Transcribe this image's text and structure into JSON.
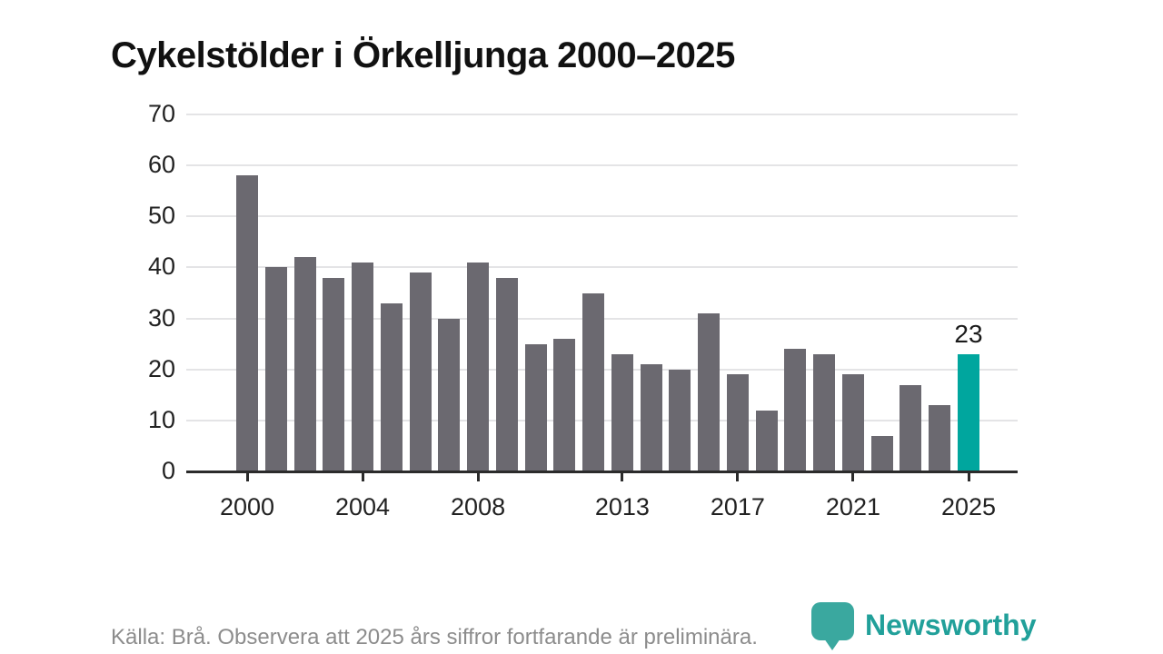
{
  "title": "Cykelstölder i Örkelljunga 2000–2025",
  "footer": {
    "source_text": "Källa: Brå. Observera att 2025 års siffror fortfarande är preliminära.",
    "logo_text": "Newsworthy"
  },
  "colors": {
    "bar": "#6b6970",
    "highlight": "#00a69e",
    "grid": "#e4e4e6",
    "axis": "#2b2b2b",
    "logo_teal": "#3aa89f",
    "logo_text_teal": "#21a09a",
    "source_text_gray": "#8c8c8c"
  },
  "chart_data": {
    "type": "bar",
    "title": "Cykelstölder i Örkelljunga 2000–2025",
    "categories": [
      "2000",
      "2001",
      "2002",
      "2003",
      "2004",
      "2005",
      "2006",
      "2007",
      "2008",
      "2009",
      "2010",
      "2011",
      "2012",
      "2013",
      "2014",
      "2015",
      "2016",
      "2017",
      "2018",
      "2019",
      "2020",
      "2021",
      "2022",
      "2023",
      "2024",
      "2025"
    ],
    "values": [
      58,
      40,
      42,
      38,
      41,
      33,
      39,
      30,
      41,
      38,
      25,
      26,
      35,
      23,
      21,
      20,
      31,
      19,
      12,
      24,
      23,
      19,
      7,
      17,
      13,
      23
    ],
    "xlabel": "",
    "ylabel": "",
    "ylim": [
      0,
      70
    ],
    "y_ticks": [
      0,
      10,
      20,
      30,
      40,
      50,
      60,
      70
    ],
    "x_tick_labels": [
      {
        "label": "2000",
        "index": 0
      },
      {
        "label": "2004",
        "index": 4
      },
      {
        "label": "2008",
        "index": 8
      },
      {
        "label": "2013",
        "index": 13
      },
      {
        "label": "2017",
        "index": 17
      },
      {
        "label": "2021",
        "index": 21
      },
      {
        "label": "2025",
        "index": 25
      }
    ],
    "highlight_index": 25,
    "highlight_value_label": "23",
    "grid": true,
    "legend_position": "none"
  }
}
